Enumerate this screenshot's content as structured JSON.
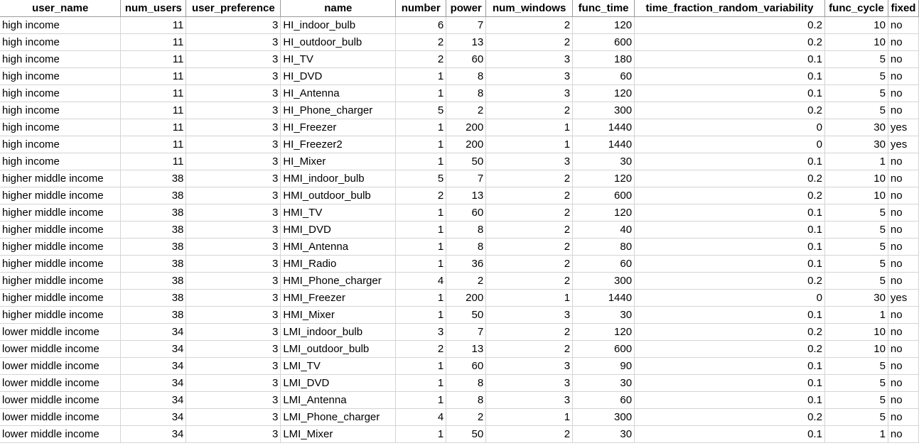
{
  "columns": [
    {
      "label": "user_name",
      "align": "txt"
    },
    {
      "label": "num_users",
      "align": "num"
    },
    {
      "label": "user_preference",
      "align": "num"
    },
    {
      "label": "name",
      "align": "txt"
    },
    {
      "label": "number",
      "align": "num"
    },
    {
      "label": "power",
      "align": "num"
    },
    {
      "label": "num_windows",
      "align": "num"
    },
    {
      "label": "func_time",
      "align": "num"
    },
    {
      "label": "time_fraction_random_variability",
      "align": "num"
    },
    {
      "label": "func_cycle",
      "align": "num"
    },
    {
      "label": "fixed",
      "align": "txt"
    }
  ],
  "rows": [
    [
      "high income",
      "11",
      "3",
      "HI_indoor_bulb",
      "6",
      "7",
      "2",
      "120",
      "0.2",
      "10",
      "no"
    ],
    [
      "high income",
      "11",
      "3",
      "HI_outdoor_bulb",
      "2",
      "13",
      "2",
      "600",
      "0.2",
      "10",
      "no"
    ],
    [
      "high income",
      "11",
      "3",
      "HI_TV",
      "2",
      "60",
      "3",
      "180",
      "0.1",
      "5",
      "no"
    ],
    [
      "high income",
      "11",
      "3",
      "HI_DVD",
      "1",
      "8",
      "3",
      "60",
      "0.1",
      "5",
      "no"
    ],
    [
      "high income",
      "11",
      "3",
      "HI_Antenna",
      "1",
      "8",
      "3",
      "120",
      "0.1",
      "5",
      "no"
    ],
    [
      "high income",
      "11",
      "3",
      "HI_Phone_charger",
      "5",
      "2",
      "2",
      "300",
      "0.2",
      "5",
      "no"
    ],
    [
      "high income",
      "11",
      "3",
      "HI_Freezer",
      "1",
      "200",
      "1",
      "1440",
      "0",
      "30",
      "yes"
    ],
    [
      "high income",
      "11",
      "3",
      "HI_Freezer2",
      "1",
      "200",
      "1",
      "1440",
      "0",
      "30",
      "yes"
    ],
    [
      "high income",
      "11",
      "3",
      "HI_Mixer",
      "1",
      "50",
      "3",
      "30",
      "0.1",
      "1",
      "no"
    ],
    [
      "higher middle income",
      "38",
      "3",
      "HMI_indoor_bulb",
      "5",
      "7",
      "2",
      "120",
      "0.2",
      "10",
      "no"
    ],
    [
      "higher middle income",
      "38",
      "3",
      "HMI_outdoor_bulb",
      "2",
      "13",
      "2",
      "600",
      "0.2",
      "10",
      "no"
    ],
    [
      "higher middle income",
      "38",
      "3",
      "HMI_TV",
      "1",
      "60",
      "2",
      "120",
      "0.1",
      "5",
      "no"
    ],
    [
      "higher middle income",
      "38",
      "3",
      "HMI_DVD",
      "1",
      "8",
      "2",
      "40",
      "0.1",
      "5",
      "no"
    ],
    [
      "higher middle income",
      "38",
      "3",
      "HMI_Antenna",
      "1",
      "8",
      "2",
      "80",
      "0.1",
      "5",
      "no"
    ],
    [
      "higher middle income",
      "38",
      "3",
      "HMI_Radio",
      "1",
      "36",
      "2",
      "60",
      "0.1",
      "5",
      "no"
    ],
    [
      "higher middle income",
      "38",
      "3",
      "HMI_Phone_charger",
      "4",
      "2",
      "2",
      "300",
      "0.2",
      "5",
      "no"
    ],
    [
      "higher middle income",
      "38",
      "3",
      "HMI_Freezer",
      "1",
      "200",
      "1",
      "1440",
      "0",
      "30",
      "yes"
    ],
    [
      "higher middle income",
      "38",
      "3",
      "HMI_Mixer",
      "1",
      "50",
      "3",
      "30",
      "0.1",
      "1",
      "no"
    ],
    [
      "lower middle income",
      "34",
      "3",
      "LMI_indoor_bulb",
      "3",
      "7",
      "2",
      "120",
      "0.2",
      "10",
      "no"
    ],
    [
      "lower middle income",
      "34",
      "3",
      "LMI_outdoor_bulb",
      "2",
      "13",
      "2",
      "600",
      "0.2",
      "10",
      "no"
    ],
    [
      "lower middle income",
      "34",
      "3",
      "LMI_TV",
      "1",
      "60",
      "3",
      "90",
      "0.1",
      "5",
      "no"
    ],
    [
      "lower middle income",
      "34",
      "3",
      "LMI_DVD",
      "1",
      "8",
      "3",
      "30",
      "0.1",
      "5",
      "no"
    ],
    [
      "lower middle income",
      "34",
      "3",
      "LMI_Antenna",
      "1",
      "8",
      "3",
      "60",
      "0.1",
      "5",
      "no"
    ],
    [
      "lower middle income",
      "34",
      "3",
      "LMI_Phone_charger",
      "4",
      "2",
      "1",
      "300",
      "0.2",
      "5",
      "no"
    ],
    [
      "lower middle income",
      "34",
      "3",
      "LMI_Mixer",
      "1",
      "50",
      "2",
      "30",
      "0.1",
      "1",
      "no"
    ]
  ]
}
